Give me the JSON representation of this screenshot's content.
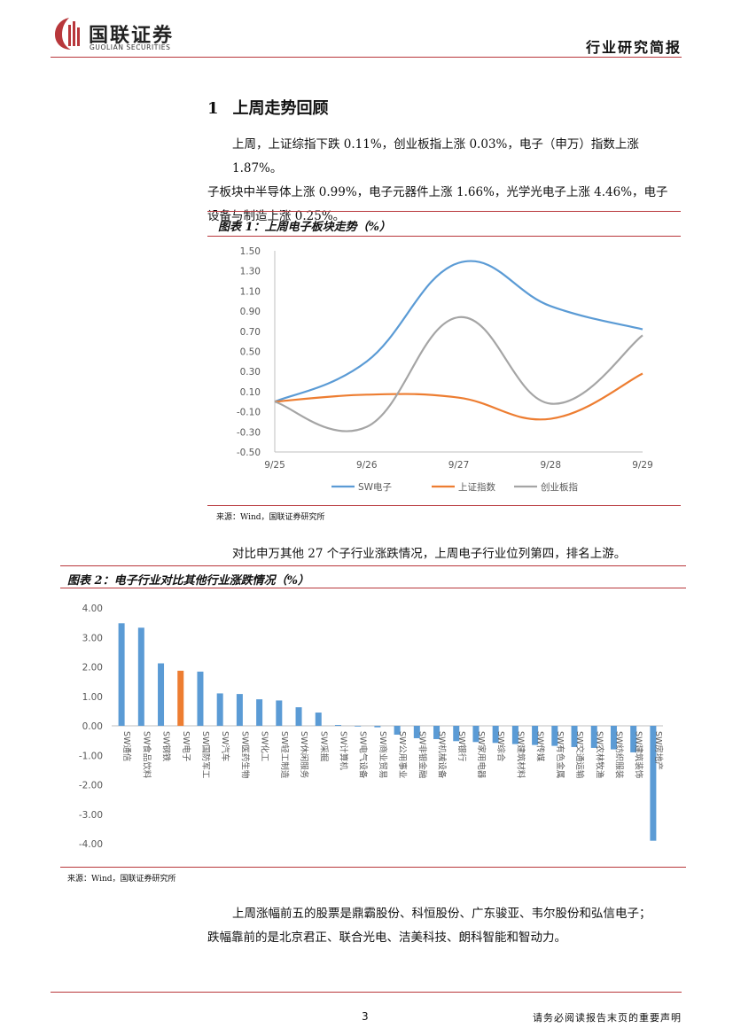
{
  "header": {
    "brand_cn": "国联证券",
    "brand_en": "GUOLIAN SECURITIES",
    "doc_type": "行业研究简报"
  },
  "section": {
    "number": "1",
    "title": "上周走势回顾"
  },
  "paragraph1": [
    "上周，上证综指下跌 0.11%，创业板指上涨 0.03%，电子（申万）指数上涨 1.87%。",
    "子板块中半导体上涨 0.99%，电子元器件上涨 1.66%，光学光电子上涨 4.46%，电子",
    "设备与制造上涨 0.25%。"
  ],
  "figure1": {
    "title": "图表 1：上周电子板块走势（%）",
    "source": "来源：Wind，国联证券研究所"
  },
  "paragraph2": "对比申万其他 27 个子行业涨跌情况，上周电子行业位列第四，排名上游。",
  "figure2": {
    "title": "图表 2：电子行业对比其他行业涨跌情况（%）",
    "source": "来源：Wind，国联证券研究所"
  },
  "paragraph3": [
    "上周涨幅前五的股票是鼎霸股份、科恒股份、广东骏亚、韦尔股份和弘信电子；",
    "跌幅靠前的是北京君正、联合光电、洁美科技、朗科智能和智动力。"
  ],
  "footer": {
    "page": "3",
    "note": "请务必阅读报告末页的重要声明"
  },
  "colors": {
    "brand_red": "#b8373b",
    "series_blue": "#5b9bd5",
    "series_orange": "#ed7d31",
    "series_gray": "#a5a5a5"
  },
  "chart_data": [
    {
      "type": "line",
      "x": [
        "9/25",
        "9/26",
        "9/27",
        "9/28",
        "9/29"
      ],
      "ylim": [
        -0.5,
        1.5
      ],
      "yticks": [
        "1.50",
        "1.30",
        "1.10",
        "0.90",
        "0.70",
        "0.50",
        "0.30",
        "0.10",
        "-0.10",
        "-0.30",
        "-0.50"
      ],
      "grid": false,
      "legend": "bottom",
      "series": [
        {
          "name": "SW电子",
          "values": [
            0.0,
            0.4,
            1.38,
            0.95,
            0.72
          ]
        },
        {
          "name": "上证指数",
          "values": [
            0.0,
            0.07,
            0.04,
            -0.17,
            0.28
          ]
        },
        {
          "name": "创业板指",
          "values": [
            0.0,
            -0.25,
            0.84,
            -0.02,
            0.66
          ]
        }
      ]
    },
    {
      "type": "bar",
      "ylim": [
        -4,
        4
      ],
      "yticks": [
        "4.00",
        "3.00",
        "2.00",
        "1.00",
        "0.00",
        "-1.00",
        "-2.00",
        "-3.00",
        "-4.00"
      ],
      "highlight": "SW电子",
      "categories": [
        "SW通信",
        "SW食品饮料",
        "SW钢铁",
        "SW电子",
        "SW国防军工",
        "SW汽车",
        "SW医药生物",
        "SW化工",
        "SW轻工制造",
        "SW休闲服务",
        "SW采掘",
        "SW计算机",
        "SW电气设备",
        "SW商业贸易",
        "SW公用事业",
        "SW非银金融",
        "SW机械设备",
        "SW银行",
        "SW家用电器",
        "SW综合",
        "SW建筑材料",
        "SW传媒",
        "SW有色金属",
        "SW交通运输",
        "SW农林牧渔",
        "SW纺织服装",
        "SW建筑装饰",
        "SW房地产"
      ],
      "values": [
        3.48,
        3.33,
        2.12,
        1.87,
        1.84,
        1.1,
        1.08,
        0.9,
        0.86,
        0.63,
        0.45,
        0.03,
        -0.02,
        -0.05,
        -0.3,
        -0.42,
        -0.45,
        -0.52,
        -0.55,
        -0.58,
        -0.62,
        -0.65,
        -0.68,
        -0.72,
        -0.75,
        -0.8,
        -0.9,
        -3.9
      ]
    }
  ]
}
